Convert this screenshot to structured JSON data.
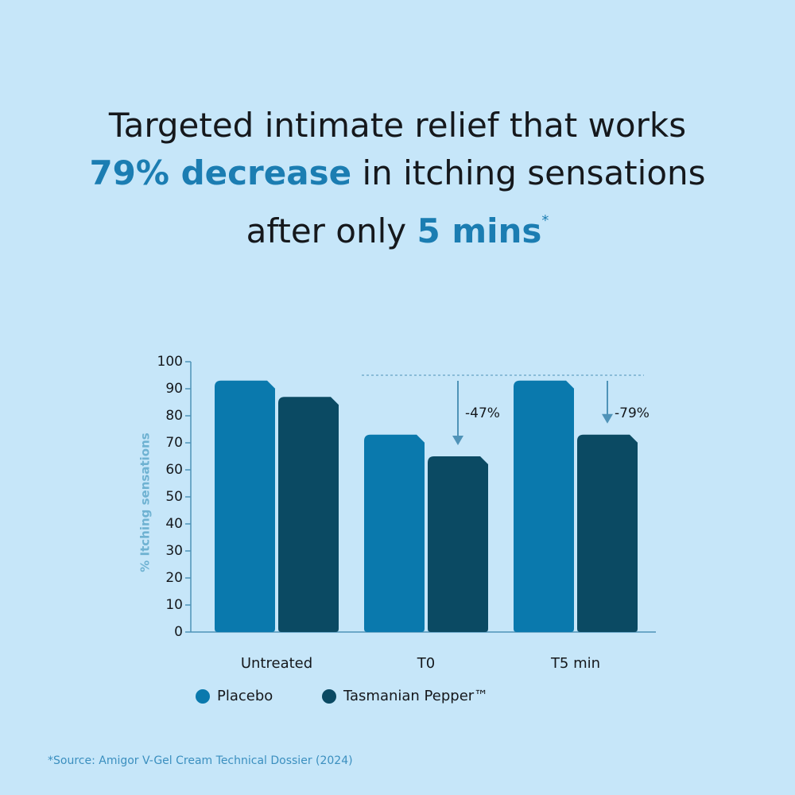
{
  "header": {
    "line1": "Targeted intimate relief that works",
    "highlight1": "79% decrease",
    "line2": "in itching sensations",
    "line3": "after only",
    "highlight2": "5 mins",
    "mark": "*"
  },
  "chart_data": {
    "type": "bar",
    "y_label": "% Itching sensations",
    "categories": [
      "Untreated",
      "T0",
      "T5 min"
    ],
    "series": [
      {
        "name": "Placebo",
        "color": "#0a79ad",
        "values": [
          93,
          73,
          93
        ]
      },
      {
        "name": "Tasmanian Pepper™",
        "color": "#0b4a63",
        "values": [
          87,
          65,
          73
        ]
      }
    ],
    "ylim": [
      0,
      100
    ],
    "yticks": [
      0,
      10,
      20,
      30,
      40,
      50,
      60,
      70,
      80,
      90,
      100
    ],
    "reference_line": 95,
    "annotations": [
      "-47%",
      "-79%"
    ],
    "source": "*Source: Amigor V-Gel Cream Technical Dossier (2024)"
  }
}
